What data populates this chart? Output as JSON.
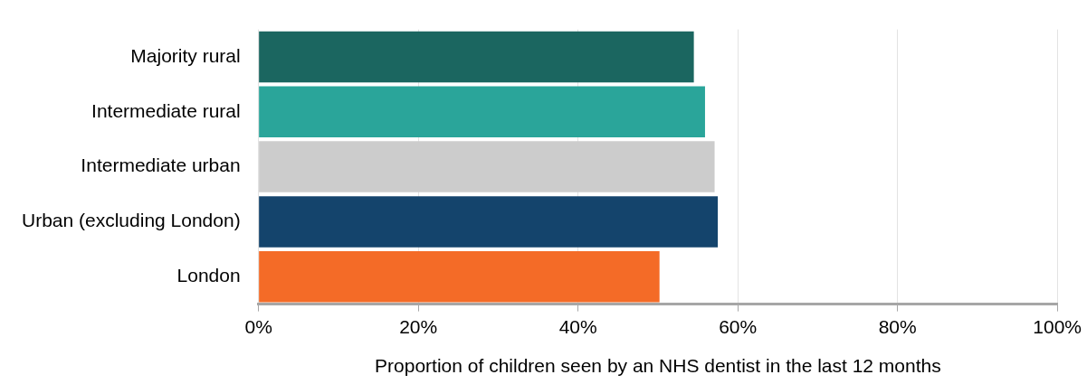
{
  "chart_data": {
    "type": "bar",
    "orientation": "horizontal",
    "xlabel": "Proportion of children seen by an NHS dentist in the last 12 months",
    "categories": [
      "Majority rural",
      "Intermediate rural",
      "Intermediate urban",
      "Urban (excluding London)",
      "London"
    ],
    "values": [
      54.5,
      55.9,
      57.1,
      57.5,
      50.2
    ],
    "colors": [
      "#1b6660",
      "#2aa59a",
      "#cccccc",
      "#14446c",
      "#f46b27"
    ],
    "xlim": [
      0,
      100
    ],
    "xticks": [
      {
        "value": 0,
        "label": "0%"
      },
      {
        "value": 20,
        "label": "20%"
      },
      {
        "value": 40,
        "label": "40%"
      },
      {
        "value": 60,
        "label": "60%"
      },
      {
        "value": 80,
        "label": "80%"
      },
      {
        "value": 100,
        "label": "100%"
      }
    ],
    "grid": "x"
  }
}
